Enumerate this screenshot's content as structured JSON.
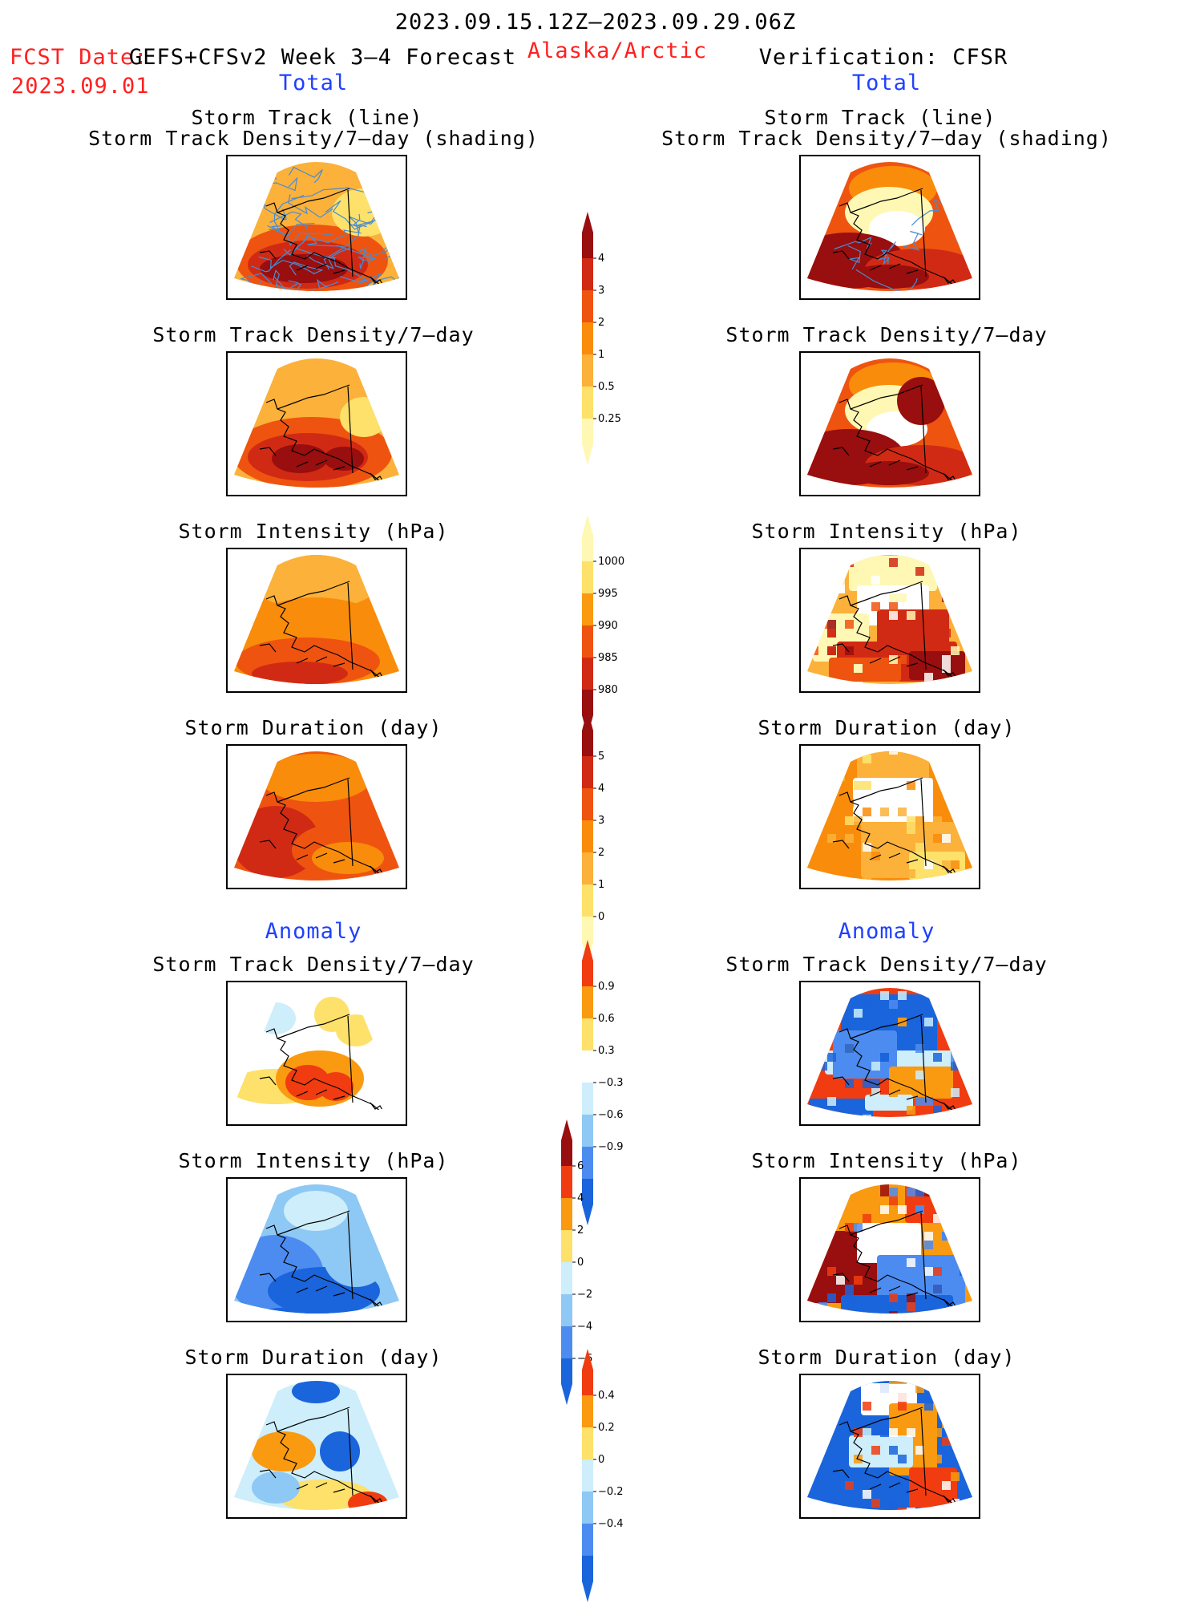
{
  "header": {
    "period": "2023.09.15.12Z–2023.09.29.06Z",
    "fcst_prefix": "FCST Date:",
    "fcst_model": "GEFS+CFSv2 Week 3–4 Forecast",
    "fcst_date": "2023.09.01",
    "region": "Alaska/Arctic",
    "verification": "Verification: CFSR",
    "left_total": "Total",
    "right_total": "Total",
    "left_anomaly": "Anomaly",
    "right_anomaly": "Anomaly"
  },
  "titles": {
    "track_line": "Storm Track (line)",
    "track_shading": "Storm Track Density/7–day (shading)",
    "density": "Storm Track Density/7–day",
    "intensity": "Storm Intensity (hPa)",
    "duration": "Storm Duration (day)"
  },
  "colors": {
    "warm": [
      "#fff8b4",
      "#fde16a",
      "#fbb13a",
      "#f98c0a",
      "#ee5410",
      "#d12a14",
      "#990e0e"
    ],
    "anom": [
      "#1a64dc",
      "#4c8cf0",
      "#8ec8f4",
      "#cdeefa",
      "#ffffff",
      "#fde16a",
      "#f99a10",
      "#f03c10",
      "#990e0e"
    ],
    "track_line": "#4a8cd0"
  },
  "chart_data": [
    {
      "type": "heatmap",
      "panel": "forecast-total-storm-track-density-with-tracks",
      "title": "Storm Track (line) / Storm Track Density/7–day (shading)",
      "dominant_levels": [
        1,
        2,
        3,
        4
      ]
    },
    {
      "type": "heatmap",
      "panel": "cfsr-total-storm-track-density-with-tracks",
      "title": "Storm Track (line) / Storm Track Density/7–day (shading)",
      "dominant_levels": [
        0.25,
        1,
        2,
        3,
        4
      ]
    },
    {
      "type": "heatmap",
      "panel": "forecast-total-storm-track-density",
      "title": "Storm Track Density/7–day",
      "dominant_levels": [
        1,
        2,
        3,
        4
      ]
    },
    {
      "type": "heatmap",
      "panel": "cfsr-total-storm-track-density",
      "title": "Storm Track Density/7–day",
      "dominant_levels": [
        0.25,
        1,
        2,
        3,
        4
      ]
    },
    {
      "type": "heatmap",
      "panel": "forecast-total-storm-intensity",
      "title": "Storm Intensity (hPa)",
      "dominant_levels": [
        995,
        990,
        985
      ]
    },
    {
      "type": "heatmap",
      "panel": "cfsr-total-storm-intensity",
      "title": "Storm Intensity (hPa)",
      "dominant_levels": [
        1000,
        995,
        990,
        985,
        980
      ]
    },
    {
      "type": "heatmap",
      "panel": "forecast-total-storm-duration",
      "title": "Storm Duration (day)",
      "dominant_levels": [
        3,
        4,
        5
      ]
    },
    {
      "type": "heatmap",
      "panel": "cfsr-total-storm-duration",
      "title": "Storm Duration (day)",
      "dominant_levels": [
        1,
        2,
        3,
        4
      ]
    },
    {
      "type": "heatmap",
      "panel": "forecast-anomaly-storm-track-density",
      "title": "Storm Track Density/7–day",
      "dominant_levels": [
        -0.3,
        0.3,
        0.6,
        0.9
      ]
    },
    {
      "type": "heatmap",
      "panel": "cfsr-anomaly-storm-track-density",
      "title": "Storm Track Density/7–day",
      "dominant_levels": [
        -0.9,
        -0.6,
        -0.3,
        0.6,
        0.9
      ]
    },
    {
      "type": "heatmap",
      "panel": "forecast-anomaly-storm-intensity",
      "title": "Storm Intensity (hPa)",
      "dominant_levels": [
        -4,
        -2,
        0,
        2
      ]
    },
    {
      "type": "heatmap",
      "panel": "cfsr-anomaly-storm-intensity",
      "title": "Storm Intensity (hPa)",
      "dominant_levels": [
        -6,
        -4,
        -2,
        2,
        4,
        6
      ]
    },
    {
      "type": "heatmap",
      "panel": "forecast-anomaly-storm-duration",
      "title": "Storm Duration (day)",
      "dominant_levels": [
        -0.4,
        -0.2,
        0,
        0.2,
        0.4
      ]
    },
    {
      "type": "heatmap",
      "panel": "cfsr-anomaly-storm-duration",
      "title": "Storm Duration (day)",
      "dominant_levels": [
        -0.4,
        -0.2,
        0,
        0.2,
        0.4
      ]
    }
  ],
  "colorbars": {
    "density": {
      "labels": [
        "4",
        "3",
        "2",
        "1",
        "0.5",
        "0.25"
      ],
      "colors": [
        "#990e0e",
        "#d12a14",
        "#ee5410",
        "#f98c0a",
        "#fbb13a",
        "#fde16a",
        "#fff8b4"
      ]
    },
    "intensity": {
      "labels": [
        "1000",
        "995",
        "990",
        "985",
        "980"
      ],
      "colors": [
        "#fff8b4",
        "#fde16a",
        "#f99a10",
        "#ee5410",
        "#d12a14",
        "#990e0e"
      ]
    },
    "duration": {
      "labels": [
        "5",
        "4",
        "3",
        "2",
        "1",
        "0"
      ],
      "colors": [
        "#990e0e",
        "#d12a14",
        "#ee5410",
        "#f98c0a",
        "#fbb13a",
        "#fde16a",
        "#fff8b4"
      ]
    },
    "density_anom": {
      "labels": [
        "0.9",
        "0.6",
        "0.3",
        "−0.3",
        "−0.6",
        "−0.9"
      ],
      "colors": [
        "#f03c10",
        "#f99a10",
        "#fde16a",
        "#ffffff",
        "#cdeefa",
        "#8ec8f4",
        "#4c8cf0",
        "#1a64dc"
      ]
    },
    "intensity_anom": {
      "labels": [
        "6",
        "4",
        "2",
        "0",
        "−2",
        "−4",
        "−6"
      ],
      "colors": [
        "#990e0e",
        "#f03c10",
        "#f99a10",
        "#fde16a",
        "#cdeefa",
        "#8ec8f4",
        "#4c8cf0",
        "#1a64dc"
      ]
    },
    "duration_anom": {
      "labels": [
        "0.4",
        "0.2",
        "0",
        "−0.2",
        "−0.4"
      ],
      "colors": [
        "#f03c10",
        "#f99a10",
        "#fde16a",
        "#cdeefa",
        "#8ec8f4",
        "#4c8cf0",
        "#1a64dc"
      ]
    }
  }
}
